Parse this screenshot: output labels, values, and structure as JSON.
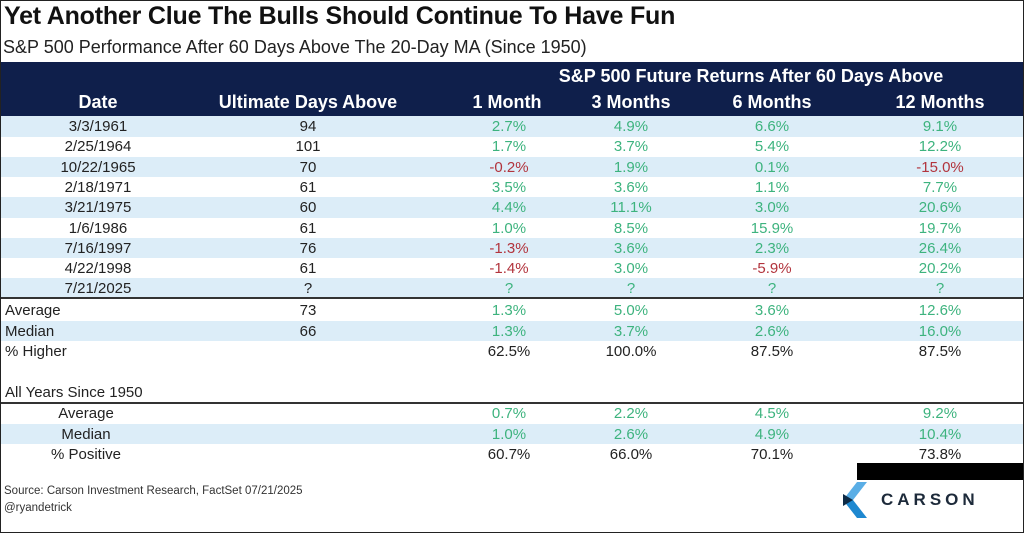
{
  "title": "Yet Another Clue The Bulls Should Continue To Have Fun",
  "subtitle": "S&P 500 Performance After 60 Days Above The 20-Day MA (Since 1950)",
  "header": {
    "group": "S&P 500 Future Returns After 60 Days Above",
    "columns": [
      "Date",
      "Ultimate Days Above",
      "1 Month",
      "3 Months",
      "6 Months",
      "12 Months"
    ]
  },
  "colors": {
    "navy": "#0f1f4b",
    "positive": "#3db37e",
    "negative": "#b2343d",
    "stripe": "#dcedf8"
  },
  "chart_data": {
    "type": "table",
    "title": "Yet Another Clue The Bulls Should Continue To Have Fun",
    "rows": [
      [
        "3/3/1961",
        "94",
        "2.7%",
        "4.9%",
        "6.6%",
        "9.1%"
      ],
      [
        "2/25/1964",
        "101",
        "1.7%",
        "3.7%",
        "5.4%",
        "12.2%"
      ],
      [
        "10/22/1965",
        "70",
        "-0.2%",
        "1.9%",
        "0.1%",
        "-15.0%"
      ],
      [
        "2/18/1971",
        "61",
        "3.5%",
        "3.6%",
        "1.1%",
        "7.7%"
      ],
      [
        "3/21/1975",
        "60",
        "4.4%",
        "11.1%",
        "3.0%",
        "20.6%"
      ],
      [
        "1/6/1986",
        "61",
        "1.0%",
        "8.5%",
        "15.9%",
        "19.7%"
      ],
      [
        "7/16/1997",
        "76",
        "-1.3%",
        "3.6%",
        "2.3%",
        "26.4%"
      ],
      [
        "4/22/1998",
        "61",
        "-1.4%",
        "3.0%",
        "-5.9%",
        "20.2%"
      ],
      [
        "7/21/2025",
        "?",
        "?",
        "?",
        "?",
        "?"
      ]
    ],
    "summary": [
      [
        "Average",
        "73",
        "1.3%",
        "5.0%",
        "3.6%",
        "12.6%"
      ],
      [
        "Median",
        "66",
        "1.3%",
        "3.7%",
        "2.6%",
        "16.0%"
      ],
      [
        "% Higher",
        "",
        "62.5%",
        "100.0%",
        "87.5%",
        "87.5%"
      ]
    ],
    "all_years_label": "All Years Since 1950",
    "all_years": [
      [
        "Average",
        "",
        "0.7%",
        "2.2%",
        "4.5%",
        "9.2%"
      ],
      [
        "Median",
        "",
        "1.0%",
        "2.6%",
        "4.9%",
        "10.4%"
      ],
      [
        "% Positive",
        "",
        "60.7%",
        "66.0%",
        "70.1%",
        "73.8%"
      ]
    ]
  },
  "footer": {
    "source": "Source: Carson Investment Research, FactSet 07/21/2025",
    "handle": "@ryandetrick",
    "logo_text": "CARSON"
  }
}
